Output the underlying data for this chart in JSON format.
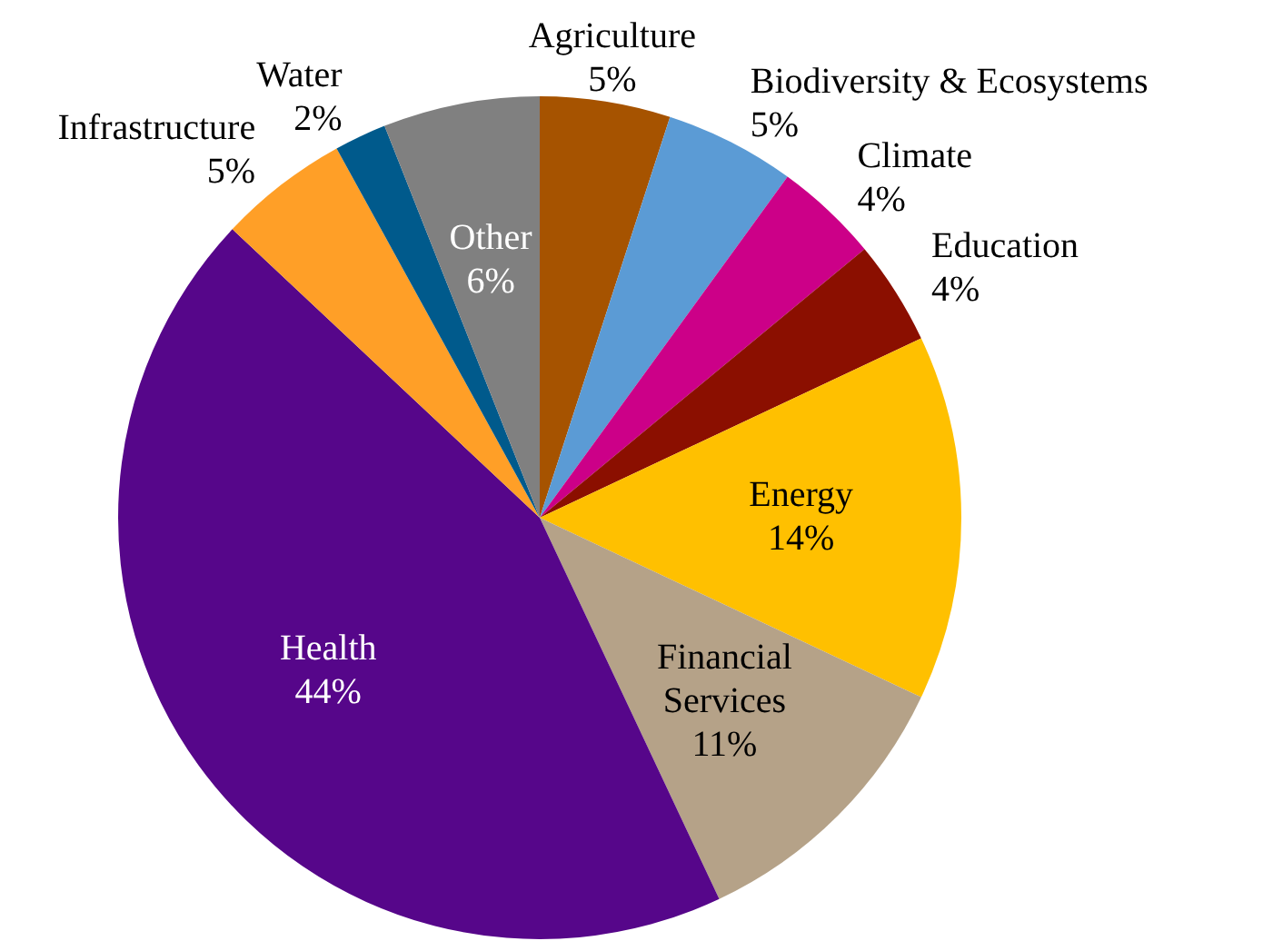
{
  "chart_data": {
    "type": "pie",
    "categories": [
      "Agriculture",
      "Biodiversity & Ecosystems",
      "Climate",
      "Education",
      "Energy",
      "Financial Services",
      "Health",
      "Infrastructure",
      "Water",
      "Other"
    ],
    "values": [
      5,
      5,
      4,
      4,
      14,
      11,
      44,
      5,
      2,
      6
    ],
    "value_labels": [
      "5%",
      "5%",
      "4%",
      "4%",
      "14%",
      "11%",
      "44%",
      "5%",
      "2%",
      "6%"
    ],
    "colors": [
      "#a65300",
      "#5b9bd5",
      "#cc0088",
      "#8b0f00",
      "#ffc000",
      "#b5a288",
      "#56068a",
      "#ff9f27",
      "#005a8c",
      "#808080"
    ],
    "legend": false
  }
}
